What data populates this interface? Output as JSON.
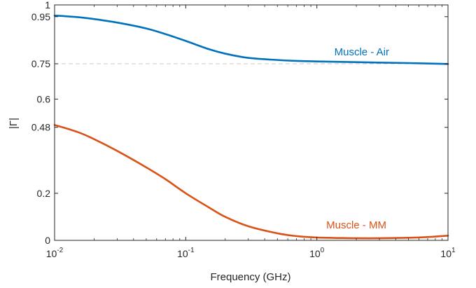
{
  "chart_data": {
    "type": "line",
    "xlabel": "Frequency (GHz)",
    "ylabel": "|Γ|",
    "x_scale": "log",
    "xlim": [
      0.01,
      10
    ],
    "ylim": [
      0,
      1
    ],
    "x_ticks": [
      {
        "base": "10",
        "exp": "-2",
        "value": 0.01
      },
      {
        "base": "10",
        "exp": "-1",
        "value": 0.1
      },
      {
        "base": "10",
        "exp": "0",
        "value": 1
      },
      {
        "base": "10",
        "exp": "1",
        "value": 10
      }
    ],
    "y_ticks": [
      {
        "label": "0",
        "value": 0
      },
      {
        "label": "0.2",
        "value": 0.2
      },
      {
        "label": "0.48",
        "value": 0.48
      },
      {
        "label": "0.6",
        "value": 0.6
      },
      {
        "label": "0.75",
        "value": 0.75
      },
      {
        "label": "0.95",
        "value": 0.95
      },
      {
        "label": "1",
        "value": 1
      }
    ],
    "reference_line": {
      "y": 0.75,
      "style": "dashed",
      "color": "#c8c8c8"
    },
    "grid": false,
    "series": [
      {
        "name": "Muscle - Air",
        "color": "#0072bd",
        "label_x": 2.2,
        "label_y": 0.8,
        "x": [
          0.01,
          0.015,
          0.02,
          0.03,
          0.05,
          0.07,
          0.1,
          0.15,
          0.2,
          0.3,
          0.5,
          0.7,
          1,
          2,
          3,
          5,
          10
        ],
        "y": [
          0.955,
          0.948,
          0.94,
          0.925,
          0.9,
          0.876,
          0.847,
          0.812,
          0.793,
          0.775,
          0.766,
          0.762,
          0.76,
          0.757,
          0.755,
          0.753,
          0.749
        ]
      },
      {
        "name": "Muscle - MM",
        "color": "#d95319",
        "label_x": 2.0,
        "label_y": 0.065,
        "x": [
          0.01,
          0.015,
          0.02,
          0.03,
          0.05,
          0.07,
          0.1,
          0.15,
          0.2,
          0.3,
          0.5,
          0.7,
          1,
          1.5,
          2,
          3,
          5,
          7,
          10
        ],
        "y": [
          0.49,
          0.46,
          0.43,
          0.38,
          0.31,
          0.26,
          0.2,
          0.14,
          0.1,
          0.06,
          0.03,
          0.018,
          0.012,
          0.01,
          0.009,
          0.009,
          0.011,
          0.014,
          0.02
        ]
      }
    ]
  }
}
